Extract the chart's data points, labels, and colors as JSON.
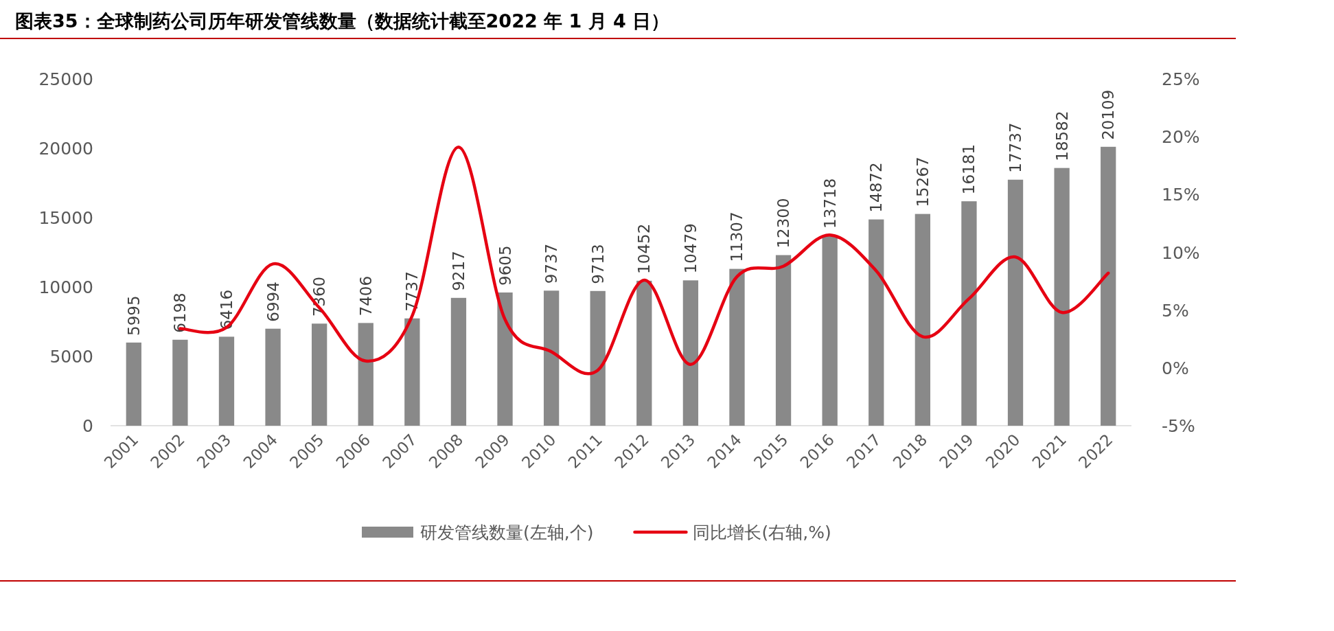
{
  "chart_data": {
    "type": "bar",
    "title": "图表35：全球制药公司历年研发管线数量（数据统计截至2022 年 1 月 4 日）",
    "categories": [
      "2001",
      "2002",
      "2003",
      "2004",
      "2005",
      "2006",
      "2007",
      "2008",
      "2009",
      "2010",
      "2011",
      "2012",
      "2013",
      "2014",
      "2015",
      "2016",
      "2017",
      "2018",
      "2019",
      "2020",
      "2021",
      "2022"
    ],
    "series": [
      {
        "name": "研发管线数量(左轴,个)",
        "color": "#898989",
        "values": [
          5995,
          6198,
          6416,
          6994,
          7360,
          7406,
          7737,
          9217,
          9605,
          9737,
          9713,
          10452,
          10479,
          11307,
          12300,
          13718,
          14872,
          15267,
          16181,
          17737,
          18582,
          20109
        ],
        "value_labels": [
          "5995",
          "6198",
          "6416",
          "6994",
          "7360",
          "7406",
          "7737",
          "9217",
          "9605",
          "9737",
          "9713",
          "10452",
          "10479",
          "11307",
          "12300",
          "13718",
          "14872",
          "15267",
          "16181",
          "17737",
          "18582",
          "20109"
        ]
      },
      {
        "name": "同比增长(右轴,%)",
        "type": "line",
        "axis": "y2",
        "color": "#e60012",
        "values": [
          null,
          3.4,
          3.5,
          9.0,
          5.2,
          0.6,
          4.5,
          19.1,
          4.2,
          1.4,
          -0.2,
          7.6,
          0.3,
          7.9,
          8.8,
          11.5,
          8.4,
          2.7,
          6.0,
          9.6,
          4.8,
          8.2
        ]
      }
    ],
    "ylim": [
      0,
      25000
    ],
    "yticks": [
      0,
      5000,
      10000,
      15000,
      20000,
      25000
    ],
    "y2lim": [
      -5,
      25
    ],
    "y2ticks": [
      {
        "value": -5,
        "label": "-5%"
      },
      {
        "value": 0,
        "label": "0%"
      },
      {
        "value": 5,
        "label": "5%"
      },
      {
        "value": 10,
        "label": "10%"
      },
      {
        "value": 15,
        "label": "15%"
      },
      {
        "value": 20,
        "label": "20%"
      },
      {
        "value": 25,
        "label": "25%"
      }
    ],
    "legend": "bottom",
    "grid": false
  }
}
